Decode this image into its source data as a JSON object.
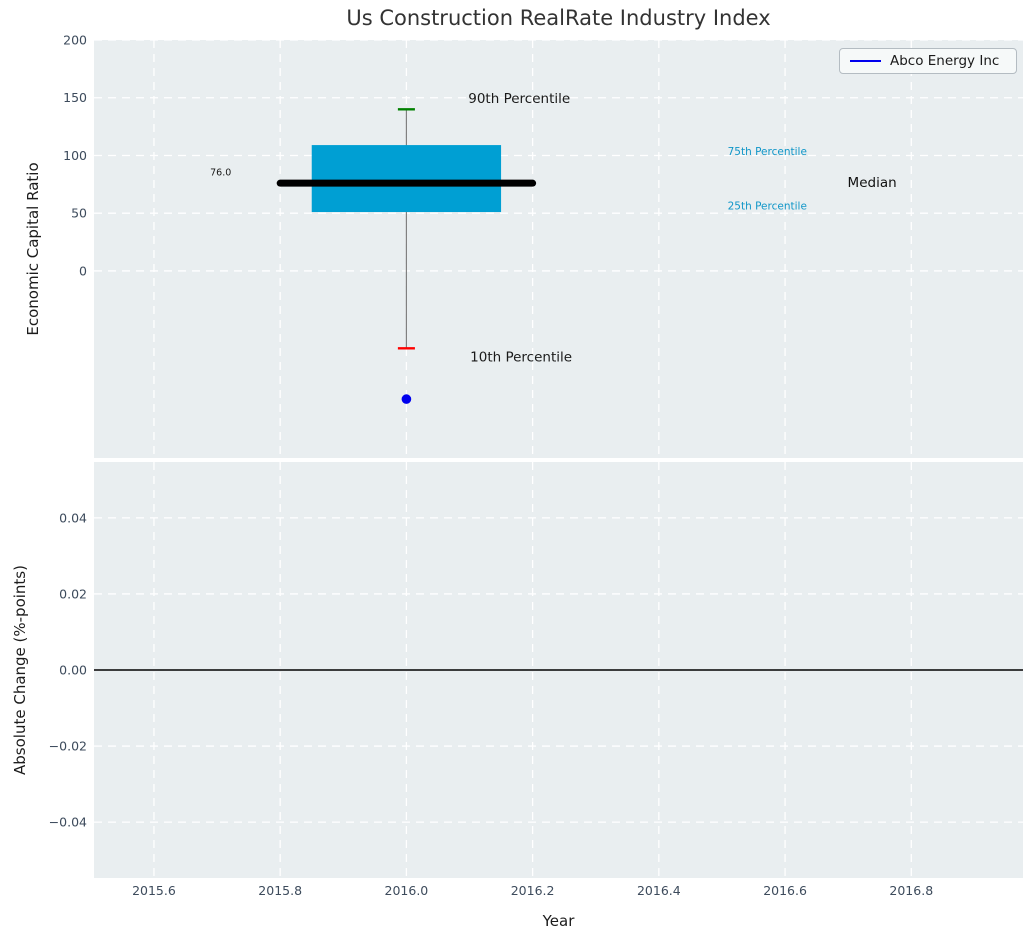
{
  "figure": {
    "title": "Us Construction RealRate Industry Index",
    "background": "#ffffff"
  },
  "colors": {
    "plot_bg": "#e9eef0",
    "grid": "#ffffff",
    "tick_text": "#3d4b5c",
    "title_text": "#333333",
    "box_fill": "#009fd3",
    "median_line": "#000000",
    "whisker": "#808080",
    "cap_upper": "#008000",
    "cap_lower": "#ff0000",
    "company_blue": "#0000ee",
    "percentile_label": "#1096c8",
    "zero_line": "#000000",
    "legend_border": "#b4bcc2"
  },
  "chart_data": [
    {
      "type": "boxplot",
      "title": "Us Construction RealRate Industry Index",
      "ylabel": "Economic Capital Ratio",
      "xlabel": "",
      "xlim": [
        2015.505,
        2016.977
      ],
      "ylim": [
        -162,
        200
      ],
      "grid": true,
      "xtick_values": [
        2015.6,
        2015.8,
        2016.0,
        2016.2,
        2016.4,
        2016.6,
        2016.8
      ],
      "xticks": [
        "2015.6",
        "2015.8",
        "2016.0",
        "2016.2",
        "2016.4",
        "2016.6",
        "2016.8"
      ],
      "show_xticklabels": false,
      "ytick_values": [
        200,
        150,
        100,
        50,
        0
      ],
      "yticks": [
        "200",
        "150",
        "100",
        "50",
        "0"
      ],
      "legend": {
        "location": "upper right",
        "entries": [
          {
            "label": "Abco Energy Inc",
            "color": "#0000ee"
          }
        ]
      },
      "box": {
        "x": 2016.0,
        "box_left": 2015.85,
        "box_right": 2016.15,
        "median_left": 2015.8,
        "median_right": 2016.2,
        "p10": -67,
        "q25": 51,
        "median": 76.0,
        "q75": 109,
        "p90": 140,
        "median_label": "76.0",
        "cap_halfwidth_years": 0.0135
      },
      "points": [
        {
          "name": "Abco Energy Inc",
          "x": 2016.0,
          "y": -111,
          "color": "#0000ee"
        }
      ],
      "annotations": [
        {
          "text": "90th Percentile",
          "x": 2016.098,
          "y": 149,
          "size": 13.5,
          "color": "#1a1a1a"
        },
        {
          "text": "75th Percentile",
          "x": 2016.509,
          "y": 103,
          "size": 10.5,
          "color": "#1096c8"
        },
        {
          "text": "Median",
          "x": 2016.699,
          "y": 76,
          "size": 13.5,
          "color": "#111111"
        },
        {
          "text": "25th Percentile",
          "x": 2016.509,
          "y": 56,
          "size": 10.5,
          "color": "#1096c8"
        },
        {
          "text": "10th Percentile",
          "x": 2016.101,
          "y": -75,
          "size": 13.5,
          "color": "#1a1a1a"
        },
        {
          "text": "76.0",
          "x": 2015.689,
          "y": 85,
          "size": 9.5,
          "color": "#1a1a1a"
        }
      ]
    },
    {
      "type": "line",
      "ylabel": "Absolute Change (%-points)",
      "xlabel": "Year",
      "xlim": [
        2015.505,
        2016.977
      ],
      "ylim": [
        -0.0547,
        0.0547
      ],
      "grid": true,
      "xtick_values": [
        2015.6,
        2015.8,
        2016.0,
        2016.2,
        2016.4,
        2016.6,
        2016.8
      ],
      "xticks": [
        "2015.6",
        "2015.8",
        "2016.0",
        "2016.2",
        "2016.4",
        "2016.6",
        "2016.8"
      ],
      "show_xticklabels": true,
      "ytick_values": [
        0.04,
        0.02,
        0.0,
        -0.02,
        -0.04
      ],
      "yticks": [
        "0.04",
        "0.02",
        "0.00",
        "−0.02",
        "−0.04"
      ],
      "hline": {
        "y": 0.0,
        "color": "#000000"
      },
      "series": []
    }
  ]
}
